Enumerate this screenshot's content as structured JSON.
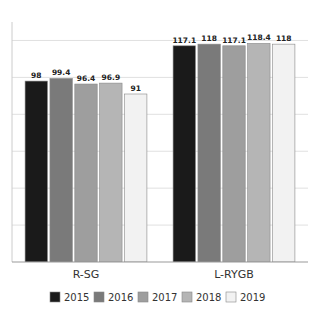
{
  "chart_data": {
    "type": "bar",
    "categories": [
      "R-SG",
      "L-RYGB"
    ],
    "series": [
      {
        "name": "2015",
        "color": "#1a1a1a",
        "values": [
          98.0,
          117.1
        ]
      },
      {
        "name": "2016",
        "color": "#7a7a7a",
        "values": [
          99.4,
          118.0
        ]
      },
      {
        "name": "2017",
        "color": "#9e9e9e",
        "values": [
          96.4,
          117.1
        ]
      },
      {
        "name": "2018",
        "color": "#b5b5b5",
        "values": [
          96.9,
          118.4
        ]
      },
      {
        "name": "2019",
        "color": "#f2f2f2",
        "values": [
          91.0,
          118.0
        ]
      }
    ],
    "ylim": [
      0,
      130
    ],
    "yticks": [
      20,
      40,
      60,
      80,
      100,
      120
    ],
    "grid": true,
    "legend": "bottom",
    "data_labels": true,
    "tick_labels": "x"
  }
}
